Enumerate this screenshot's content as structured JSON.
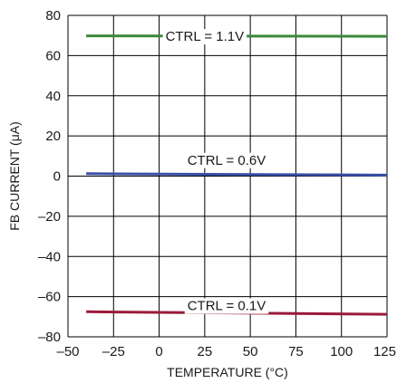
{
  "chart_data": {
    "type": "line",
    "xlabel": "TEMPERATURE  (°C)",
    "ylabel": "FB CURRENT (μA)",
    "xlim": [
      -50,
      125
    ],
    "ylim": [
      -80,
      80
    ],
    "x_ticks": [
      -50,
      -25,
      0,
      25,
      50,
      75,
      100,
      125
    ],
    "y_ticks": [
      80,
      60,
      40,
      20,
      0,
      -20,
      -40,
      -60,
      -80
    ],
    "x_tick_labels": [
      "–50",
      "–25",
      "0",
      "25",
      "50",
      "75",
      "100",
      "125"
    ],
    "y_tick_labels": [
      "80",
      "60",
      "40",
      "20",
      "0",
      "–20",
      "–40",
      "–60",
      "–80"
    ],
    "grid": true,
    "series": [
      {
        "name": "CTRL = 1.1V",
        "color": "#3a8a3a",
        "x": [
          -40,
          125
        ],
        "y": [
          69.8,
          69.6
        ],
        "label_at": [
          25,
          69.6
        ]
      },
      {
        "name": "CTRL = 0.6V",
        "color": "#3a4fa8",
        "x": [
          -40,
          125
        ],
        "y": [
          1.2,
          0.5
        ],
        "label_at": [
          37,
          8
        ]
      },
      {
        "name": "CTRL = 0.1V",
        "color": "#9a1a3a",
        "x": [
          -40,
          125
        ],
        "y": [
          -67.5,
          -68.8
        ],
        "label_at": [
          37,
          -64.5
        ]
      }
    ]
  }
}
